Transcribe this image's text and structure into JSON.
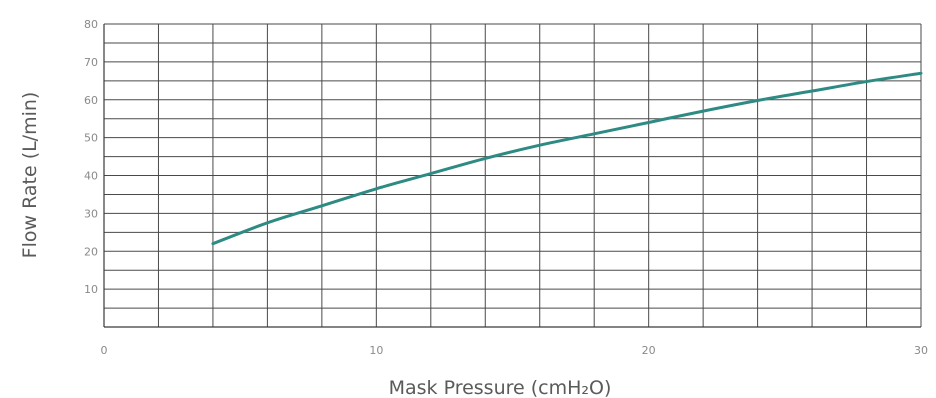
{
  "chart_data": {
    "type": "line",
    "title": "",
    "xlabel": "Mask Pressure  (cmH₂O)",
    "ylabel": "Flow Rate (L/min)",
    "xlim": [
      0,
      30
    ],
    "ylim": [
      0,
      80
    ],
    "x_ticks": [
      {
        "value": 0,
        "label": "0"
      },
      {
        "value": 10,
        "label": "10"
      },
      {
        "value": 20,
        "label": "20"
      },
      {
        "value": 30,
        "label": "30"
      }
    ],
    "y_ticks": [
      {
        "value": 10,
        "label": "10"
      },
      {
        "value": 20,
        "label": "20"
      },
      {
        "value": 30,
        "label": "30"
      },
      {
        "value": 40,
        "label": "40"
      },
      {
        "value": 50,
        "label": "50"
      },
      {
        "value": 60,
        "label": "60"
      },
      {
        "value": 70,
        "label": "70"
      },
      {
        "value": 80,
        "label": "80"
      }
    ],
    "grid": true,
    "x_grid_step": 2,
    "y_grid_step": 5,
    "series": [
      {
        "color": "#2e8b84",
        "x": [
          4,
          6,
          8,
          10,
          12,
          14,
          16,
          18,
          20,
          22,
          24,
          26,
          28,
          30
        ],
        "y": [
          22,
          27.5,
          32,
          36.5,
          40.5,
          44.5,
          48,
          51,
          54,
          57,
          59.8,
          62.3,
          64.8,
          67
        ]
      }
    ]
  }
}
